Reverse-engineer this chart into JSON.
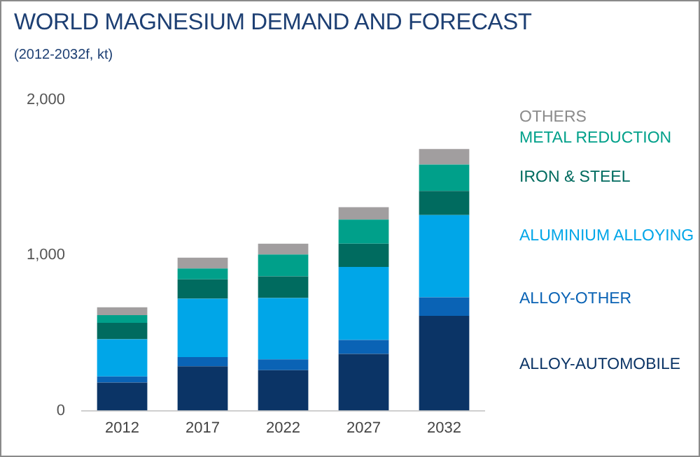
{
  "chart_data": {
    "type": "bar",
    "title": "WORLD MAGNESIUM DEMAND AND FORECAST",
    "subtitle": "(2012-2032f, kt)",
    "categories": [
      "2012",
      "2017",
      "2022",
      "2027",
      "2032"
    ],
    "stacked": true,
    "ylim": [
      0,
      2000
    ],
    "yticks": [
      0,
      {
        "value": 1000,
        "label": "1,000"
      },
      {
        "value": 2000,
        "label": "2,000"
      }
    ],
    "grid": false,
    "legend": "right",
    "series": [
      {
        "name": "ALLOY-AUTOMOBILE",
        "color": "#0b3466",
        "values": [
          180,
          285,
          260,
          365,
          610
        ]
      },
      {
        "name": "ALLOY-OTHER",
        "color": "#0a63b5",
        "values": [
          40,
          60,
          70,
          90,
          120
        ]
      },
      {
        "name": "ALUMINIUM ALLOYING",
        "color": "#00a6e8",
        "values": [
          240,
          375,
          395,
          470,
          530
        ]
      },
      {
        "name": "IRON & STEEL",
        "color": "#006b5f",
        "values": [
          105,
          125,
          140,
          150,
          155
        ]
      },
      {
        "name": "METAL REDUCTION",
        "color": "#00a08a",
        "values": [
          50,
          70,
          140,
          155,
          170
        ]
      },
      {
        "name": "OTHERS",
        "color": "#a19e9f",
        "values": [
          50,
          70,
          70,
          80,
          100
        ]
      }
    ]
  }
}
